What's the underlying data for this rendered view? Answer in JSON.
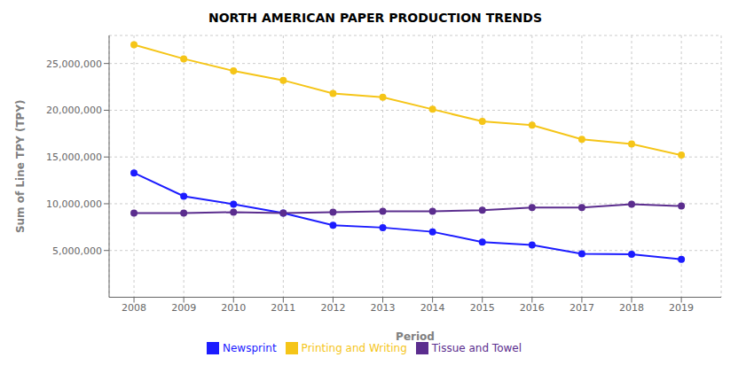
{
  "chart_data": {
    "type": "line",
    "title": "NORTH AMERICAN PAPER PRODUCTION TRENDS",
    "xlabel": "Period",
    "ylabel": "Sum of Line TPY (TPY)",
    "x": [
      2008,
      2009,
      2010,
      2011,
      2012,
      2013,
      2014,
      2015,
      2016,
      2017,
      2018,
      2019
    ],
    "series": [
      {
        "name": "Newsprint",
        "color": "#1c1cff",
        "values": [
          13300000,
          10800000,
          9950000,
          9000000,
          7700000,
          7450000,
          7000000,
          5900000,
          5600000,
          4650000,
          4600000,
          4050000
        ]
      },
      {
        "name": "Printing and Writing",
        "color": "#f5c518",
        "values": [
          27000000,
          25500000,
          24200000,
          23200000,
          21800000,
          21400000,
          20100000,
          18800000,
          18400000,
          16900000,
          16400000,
          15200000
        ]
      },
      {
        "name": "Tissue and Towel",
        "color": "#5b2d8e",
        "values": [
          9000000,
          9000000,
          9100000,
          9000000,
          9100000,
          9200000,
          9200000,
          9300000,
          9600000,
          9600000,
          9950000,
          9750000
        ]
      }
    ],
    "xlim": [
      2007.5,
      2019.8
    ],
    "xticks": [
      2008,
      2009,
      2010,
      2011,
      2012,
      2013,
      2014,
      2015,
      2016,
      2017,
      2018,
      2019
    ],
    "ylim": [
      0,
      28000000
    ],
    "yticks": [
      {
        "value": 5000000,
        "label": "5,000,000"
      },
      {
        "value": 10000000,
        "label": "10,000,000"
      },
      {
        "value": 15000000,
        "label": "15,000,000"
      },
      {
        "value": 20000000,
        "label": "20,000,000"
      },
      {
        "value": 25000000,
        "label": "25,000,000"
      }
    ],
    "marker": "circle",
    "grid": true,
    "legend": "bottom"
  }
}
